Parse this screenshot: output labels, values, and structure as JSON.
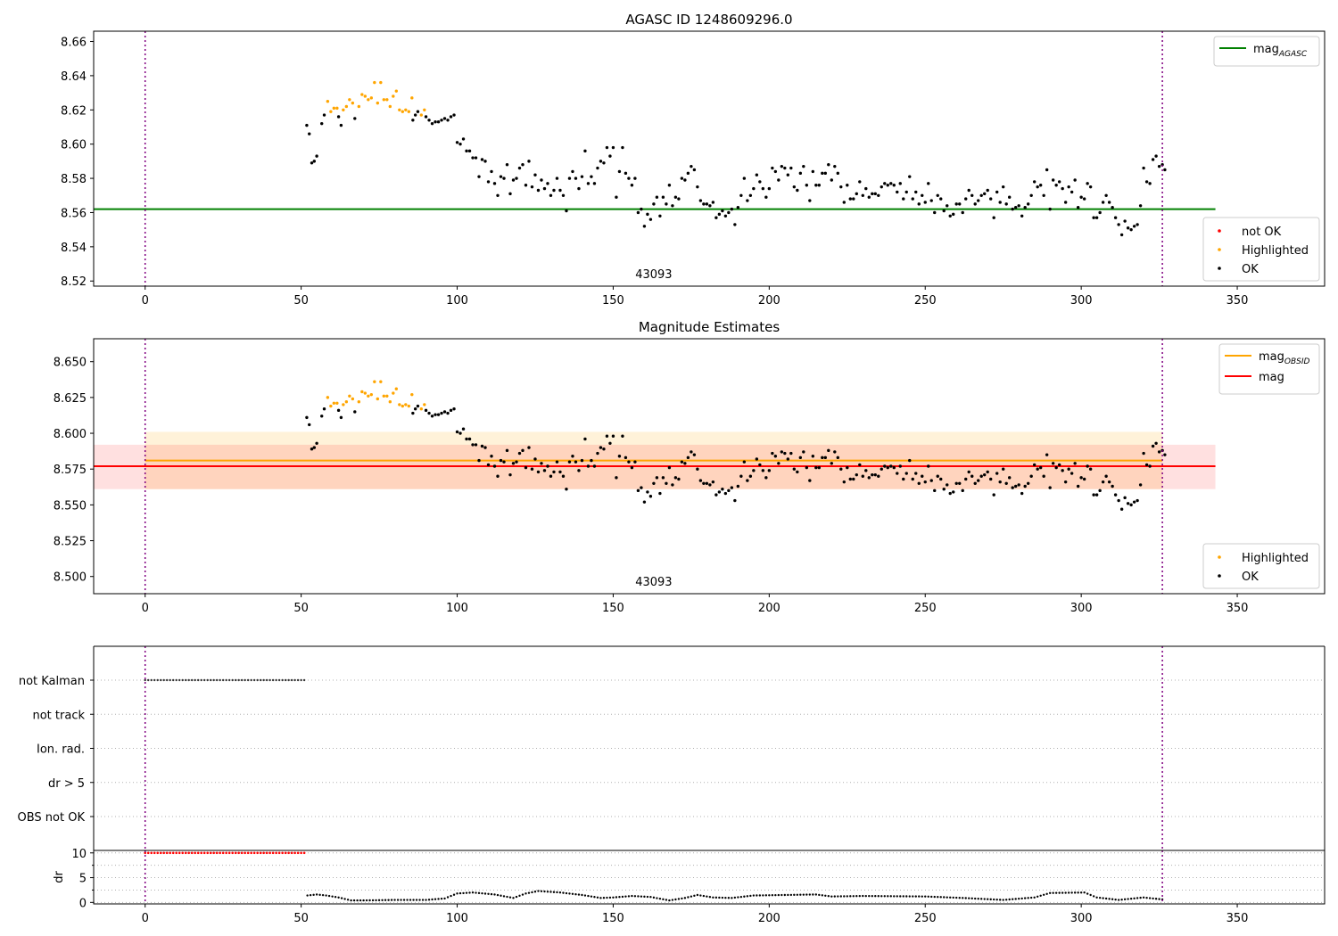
{
  "chart_data": [
    {
      "panel": "star magnitude",
      "type": "scatter",
      "title": "AGASC ID 1248609296.0",
      "xlim": [
        -16.5,
        378
      ],
      "ylim": [
        8.517,
        8.666
      ],
      "xticks": [
        0,
        50,
        100,
        150,
        200,
        250,
        300,
        350
      ],
      "yticks": [
        8.52,
        8.54,
        8.56,
        8.58,
        8.6,
        8.62,
        8.64,
        8.66
      ],
      "ytick_decimals": 2,
      "vlines": [
        0,
        326
      ],
      "hlines": [
        {
          "name": "mag_AGASC",
          "y": 8.562,
          "x": [
            -16.5,
            343
          ],
          "color": "#008000"
        }
      ],
      "bands": [],
      "annotation": {
        "text": "43093",
        "x": 163
      },
      "legend_lines": [
        {
          "label": "mag",
          "sub": "AGASC",
          "color": "#008000"
        }
      ],
      "legend_points": [
        {
          "label": "not OK",
          "color": "#ff0000"
        },
        {
          "label": "Highlighted",
          "color": "#ffa500"
        },
        {
          "label": "OK",
          "color": "#000000"
        }
      ],
      "point_series": [
        "highlighted",
        "ok"
      ],
      "grid": false
    },
    {
      "panel": "magnitude estimates",
      "type": "scatter",
      "title": "Magnitude Estimates",
      "xlim": [
        -16.5,
        378
      ],
      "ylim": [
        8.488,
        8.666
      ],
      "xticks": [
        0,
        50,
        100,
        150,
        200,
        250,
        300,
        350
      ],
      "yticks": [
        8.5,
        8.525,
        8.55,
        8.575,
        8.6,
        8.625,
        8.65
      ],
      "ytick_decimals": 3,
      "vlines": [
        0,
        326
      ],
      "hlines": [
        {
          "name": "mag_OBSID",
          "y": 8.581,
          "x": [
            0,
            326
          ],
          "color": "#ffa500"
        },
        {
          "name": "mag",
          "y": 8.577,
          "x": [
            -16.5,
            343
          ],
          "color": "#ff0000"
        }
      ],
      "bands": [
        {
          "y0": 8.561,
          "y1": 8.601,
          "x": [
            0,
            326
          ],
          "color": "#ffa500",
          "opacity": 0.15
        },
        {
          "y0": 8.561,
          "y1": 8.592,
          "x": [
            -16.5,
            343
          ],
          "color": "#ff0000",
          "opacity": 0.12
        }
      ],
      "annotation": {
        "text": "43093",
        "x": 163
      },
      "legend_lines": [
        {
          "label": "mag",
          "sub": "OBSID",
          "color": "#ffa500"
        },
        {
          "label": "mag",
          "sub": "",
          "color": "#ff0000"
        }
      ],
      "legend_points": [
        {
          "label": "Highlighted",
          "color": "#ffa500"
        },
        {
          "label": "OK",
          "color": "#000000"
        }
      ],
      "point_series": [
        "highlighted",
        "ok"
      ],
      "grid": false
    },
    {
      "panel": "flags",
      "type": "scatter",
      "categories": [
        "not Kalman",
        "not track",
        "Ion. rad.",
        "dr > 5",
        "OBS not OK"
      ],
      "flagged_ranges": [
        {
          "category": "not Kalman",
          "x": [
            0,
            51
          ]
        }
      ],
      "xlim": [
        -16.5,
        378
      ],
      "vlines": [
        0,
        326
      ],
      "grid": true
    },
    {
      "panel": "dr",
      "type": "scatter",
      "ylabel": "dr",
      "xlim": [
        -16.5,
        378
      ],
      "ylim": [
        -0.3,
        10.5
      ],
      "yticks": [
        0,
        5,
        10
      ],
      "xticks": [
        0,
        50,
        100,
        150,
        200,
        250,
        300,
        350
      ],
      "vlines": [
        0,
        326
      ],
      "capped_points": {
        "y": 10,
        "x_range": [
          0,
          51
        ],
        "color": "#ff0000"
      },
      "series": [
        {
          "x": 52,
          "y": 1.4
        },
        {
          "x": 55,
          "y": 1.6
        },
        {
          "x": 58,
          "y": 1.4
        },
        {
          "x": 62,
          "y": 1.0
        },
        {
          "x": 66,
          "y": 0.4
        },
        {
          "x": 70,
          "y": 0.4
        },
        {
          "x": 80,
          "y": 0.5
        },
        {
          "x": 90,
          "y": 0.5
        },
        {
          "x": 96,
          "y": 0.8
        },
        {
          "x": 100,
          "y": 1.8
        },
        {
          "x": 105,
          "y": 2.0
        },
        {
          "x": 112,
          "y": 1.6
        },
        {
          "x": 118,
          "y": 0.9
        },
        {
          "x": 122,
          "y": 1.8
        },
        {
          "x": 126,
          "y": 2.3
        },
        {
          "x": 133,
          "y": 2.0
        },
        {
          "x": 140,
          "y": 1.5
        },
        {
          "x": 146,
          "y": 0.9
        },
        {
          "x": 150,
          "y": 1.0
        },
        {
          "x": 156,
          "y": 1.3
        },
        {
          "x": 162,
          "y": 1.1
        },
        {
          "x": 168,
          "y": 0.4
        },
        {
          "x": 173,
          "y": 0.9
        },
        {
          "x": 177,
          "y": 1.5
        },
        {
          "x": 182,
          "y": 1.0
        },
        {
          "x": 188,
          "y": 0.9
        },
        {
          "x": 195,
          "y": 1.4
        },
        {
          "x": 205,
          "y": 1.5
        },
        {
          "x": 215,
          "y": 1.6
        },
        {
          "x": 220,
          "y": 1.2
        },
        {
          "x": 230,
          "y": 1.3
        },
        {
          "x": 250,
          "y": 1.2
        },
        {
          "x": 262,
          "y": 0.9
        },
        {
          "x": 275,
          "y": 0.5
        },
        {
          "x": 285,
          "y": 1.0
        },
        {
          "x": 290,
          "y": 1.9
        },
        {
          "x": 301,
          "y": 2.0
        },
        {
          "x": 305,
          "y": 1.0
        },
        {
          "x": 312,
          "y": 0.5
        },
        {
          "x": 320,
          "y": 1.0
        },
        {
          "x": 326,
          "y": 0.6
        }
      ]
    }
  ],
  "observation_points": {
    "highlighted": [
      [
        58.5,
        8.625
      ],
      [
        59.5,
        8.619
      ],
      [
        60.5,
        8.621
      ],
      [
        61.5,
        8.621
      ],
      [
        63.5,
        8.62
      ],
      [
        64.5,
        8.622
      ],
      [
        65.5,
        8.626
      ],
      [
        66.5,
        8.624
      ],
      [
        68.5,
        8.622
      ],
      [
        69.5,
        8.629
      ],
      [
        70.5,
        8.628
      ],
      [
        71.5,
        8.626
      ],
      [
        72.5,
        8.627
      ],
      [
        73.5,
        8.636
      ],
      [
        74.5,
        8.624
      ],
      [
        75.5,
        8.636
      ],
      [
        76.5,
        8.626
      ],
      [
        77.5,
        8.626
      ],
      [
        78.5,
        8.622
      ],
      [
        79.5,
        8.628
      ],
      [
        80.5,
        8.631
      ],
      [
        81.5,
        8.62
      ],
      [
        82.5,
        8.619
      ],
      [
        83.5,
        8.62
      ],
      [
        84.5,
        8.619
      ],
      [
        85.5,
        8.627
      ],
      [
        88.5,
        8.617
      ],
      [
        89.5,
        8.62
      ]
    ],
    "ok": [
      [
        51.8,
        8.611
      ],
      [
        52.6,
        8.606
      ],
      [
        53.4,
        8.589
      ],
      [
        54.2,
        8.59
      ],
      [
        55.0,
        8.593
      ],
      [
        56.6,
        8.612
      ],
      [
        57.4,
        8.617
      ],
      [
        62.0,
        8.616
      ],
      [
        62.8,
        8.611
      ],
      [
        67.2,
        8.615
      ],
      [
        85.8,
        8.614
      ],
      [
        86.6,
        8.617
      ],
      [
        87.4,
        8.619
      ],
      [
        90.0,
        8.616
      ],
      [
        91.0,
        8.614
      ],
      [
        92.0,
        8.612
      ],
      [
        93.0,
        8.613
      ],
      [
        94.0,
        8.613
      ],
      [
        95.0,
        8.614
      ],
      [
        96.0,
        8.615
      ],
      [
        97.0,
        8.614
      ],
      [
        98.0,
        8.616
      ],
      [
        99.0,
        8.617
      ],
      [
        100.0,
        8.601
      ],
      [
        101.0,
        8.6
      ],
      [
        102.0,
        8.603
      ],
      [
        103.0,
        8.596
      ],
      [
        104.0,
        8.596
      ],
      [
        105.0,
        8.592
      ],
      [
        106.0,
        8.592
      ],
      [
        107.0,
        8.581
      ],
      [
        108.0,
        8.591
      ],
      [
        109.0,
        8.59
      ],
      [
        110.0,
        8.578
      ],
      [
        111.0,
        8.584
      ],
      [
        112.0,
        8.577
      ],
      [
        113.0,
        8.57
      ],
      [
        114.0,
        8.581
      ],
      [
        115.0,
        8.58
      ],
      [
        116.0,
        8.588
      ],
      [
        117.0,
        8.571
      ],
      [
        118.0,
        8.579
      ],
      [
        119.0,
        8.58
      ],
      [
        120.0,
        8.586
      ],
      [
        121.0,
        8.588
      ],
      [
        122.0,
        8.576
      ],
      [
        123.0,
        8.59
      ],
      [
        124.0,
        8.575
      ],
      [
        125.0,
        8.582
      ],
      [
        126.0,
        8.573
      ],
      [
        127.0,
        8.579
      ],
      [
        128.0,
        8.574
      ],
      [
        129.0,
        8.577
      ],
      [
        130.0,
        8.57
      ],
      [
        131.0,
        8.573
      ],
      [
        132.0,
        8.58
      ],
      [
        133.0,
        8.573
      ],
      [
        134.0,
        8.57
      ],
      [
        135.0,
        8.561
      ],
      [
        136.0,
        8.58
      ],
      [
        137.0,
        8.584
      ],
      [
        138.0,
        8.58
      ],
      [
        139.0,
        8.574
      ],
      [
        140.0,
        8.581
      ],
      [
        141.0,
        8.596
      ],
      [
        142.0,
        8.577
      ],
      [
        143.0,
        8.581
      ],
      [
        144.0,
        8.577
      ],
      [
        145.0,
        8.586
      ],
      [
        146.0,
        8.59
      ],
      [
        147.0,
        8.589
      ],
      [
        148.0,
        8.598
      ],
      [
        149.0,
        8.593
      ],
      [
        150.0,
        8.598
      ],
      [
        151.0,
        8.569
      ],
      [
        152.0,
        8.584
      ],
      [
        153.0,
        8.598
      ],
      [
        154.0,
        8.583
      ],
      [
        155.0,
        8.58
      ],
      [
        156.0,
        8.576
      ],
      [
        157.0,
        8.58
      ],
      [
        158.0,
        8.56
      ],
      [
        159.0,
        8.562
      ],
      [
        160.0,
        8.552
      ],
      [
        161.0,
        8.559
      ],
      [
        162.0,
        8.556
      ],
      [
        163.0,
        8.565
      ],
      [
        164.0,
        8.569
      ],
      [
        165.0,
        8.558
      ],
      [
        166.0,
        8.569
      ],
      [
        167.0,
        8.565
      ],
      [
        168.0,
        8.576
      ],
      [
        169.0,
        8.564
      ],
      [
        170.0,
        8.569
      ],
      [
        171.0,
        8.568
      ],
      [
        172.0,
        8.58
      ],
      [
        173.0,
        8.579
      ],
      [
        174.0,
        8.583
      ],
      [
        175.0,
        8.587
      ],
      [
        176.0,
        8.585
      ],
      [
        177.0,
        8.575
      ],
      [
        178.0,
        8.567
      ],
      [
        179.0,
        8.565
      ],
      [
        180.0,
        8.565
      ],
      [
        181.0,
        8.564
      ],
      [
        182.0,
        8.566
      ],
      [
        183.0,
        8.557
      ],
      [
        184.0,
        8.559
      ],
      [
        185.0,
        8.561
      ],
      [
        186.0,
        8.558
      ],
      [
        187.0,
        8.56
      ],
      [
        188.0,
        8.562
      ],
      [
        189.0,
        8.553
      ],
      [
        190.0,
        8.563
      ],
      [
        191.0,
        8.57
      ],
      [
        192.0,
        8.58
      ],
      [
        193.0,
        8.567
      ],
      [
        194.0,
        8.57
      ],
      [
        195.0,
        8.574
      ],
      [
        196.0,
        8.582
      ],
      [
        197.0,
        8.578
      ],
      [
        198.0,
        8.574
      ],
      [
        199.0,
        8.569
      ],
      [
        200.0,
        8.574
      ],
      [
        201.0,
        8.586
      ],
      [
        202.0,
        8.584
      ],
      [
        203.0,
        8.579
      ],
      [
        204.0,
        8.587
      ],
      [
        205.0,
        8.586
      ],
      [
        206.0,
        8.582
      ],
      [
        207.0,
        8.586
      ],
      [
        208.0,
        8.575
      ],
      [
        209.0,
        8.573
      ],
      [
        210.0,
        8.583
      ],
      [
        211.0,
        8.587
      ],
      [
        212.0,
        8.576
      ],
      [
        213.0,
        8.567
      ],
      [
        214.0,
        8.584
      ],
      [
        215.0,
        8.576
      ],
      [
        216.0,
        8.576
      ],
      [
        217.0,
        8.583
      ],
      [
        218.0,
        8.583
      ],
      [
        219.0,
        8.588
      ],
      [
        220.0,
        8.579
      ],
      [
        221.0,
        8.587
      ],
      [
        222.0,
        8.583
      ],
      [
        223.0,
        8.575
      ],
      [
        224.0,
        8.566
      ],
      [
        225.0,
        8.576
      ],
      [
        226.0,
        8.568
      ],
      [
        227.0,
        8.568
      ],
      [
        228.0,
        8.571
      ],
      [
        229.0,
        8.578
      ],
      [
        230.0,
        8.57
      ],
      [
        231.0,
        8.574
      ],
      [
        232.0,
        8.569
      ],
      [
        233.0,
        8.571
      ],
      [
        234.0,
        8.571
      ],
      [
        235.0,
        8.57
      ],
      [
        236.0,
        8.575
      ],
      [
        237.0,
        8.577
      ],
      [
        238.0,
        8.576
      ],
      [
        239.0,
        8.577
      ],
      [
        240.0,
        8.576
      ],
      [
        241.0,
        8.572
      ],
      [
        242.0,
        8.577
      ],
      [
        243.0,
        8.568
      ],
      [
        244.0,
        8.572
      ],
      [
        245.0,
        8.581
      ],
      [
        246.0,
        8.568
      ],
      [
        247.0,
        8.572
      ],
      [
        248.0,
        8.565
      ],
      [
        249.0,
        8.57
      ],
      [
        250.0,
        8.566
      ],
      [
        251.0,
        8.577
      ],
      [
        252.0,
        8.567
      ],
      [
        253.0,
        8.56
      ],
      [
        254.0,
        8.57
      ],
      [
        255.0,
        8.568
      ],
      [
        256.0,
        8.561
      ],
      [
        257.0,
        8.564
      ],
      [
        258.0,
        8.558
      ],
      [
        259.0,
        8.559
      ],
      [
        260.0,
        8.565
      ],
      [
        261.0,
        8.565
      ],
      [
        262.0,
        8.56
      ],
      [
        263.0,
        8.568
      ],
      [
        264.0,
        8.573
      ],
      [
        265.0,
        8.57
      ],
      [
        266.0,
        8.565
      ],
      [
        267.0,
        8.567
      ],
      [
        268.0,
        8.57
      ],
      [
        269.0,
        8.571
      ],
      [
        270.0,
        8.573
      ],
      [
        271.0,
        8.568
      ],
      [
        272.0,
        8.557
      ],
      [
        273.0,
        8.572
      ],
      [
        274.0,
        8.566
      ],
      [
        275.0,
        8.575
      ],
      [
        276.0,
        8.565
      ],
      [
        277.0,
        8.569
      ],
      [
        278.0,
        8.562
      ],
      [
        279.0,
        8.563
      ],
      [
        280.0,
        8.564
      ],
      [
        281.0,
        8.558
      ],
      [
        282.0,
        8.563
      ],
      [
        283.0,
        8.565
      ],
      [
        284.0,
        8.57
      ],
      [
        285.0,
        8.578
      ],
      [
        286.0,
        8.575
      ],
      [
        287.0,
        8.576
      ],
      [
        288.0,
        8.57
      ],
      [
        289.0,
        8.585
      ],
      [
        290.0,
        8.562
      ],
      [
        291.0,
        8.579
      ],
      [
        292.0,
        8.576
      ],
      [
        293.0,
        8.578
      ],
      [
        294.0,
        8.574
      ],
      [
        295.0,
        8.566
      ],
      [
        296.0,
        8.575
      ],
      [
        297.0,
        8.572
      ],
      [
        298.0,
        8.579
      ],
      [
        299.0,
        8.563
      ],
      [
        300.0,
        8.569
      ],
      [
        301.0,
        8.568
      ],
      [
        302.0,
        8.577
      ],
      [
        303.0,
        8.575
      ],
      [
        304.0,
        8.557
      ],
      [
        305.0,
        8.557
      ],
      [
        306.0,
        8.56
      ],
      [
        307.0,
        8.566
      ],
      [
        308.0,
        8.57
      ],
      [
        309.0,
        8.566
      ],
      [
        310.0,
        8.563
      ],
      [
        311.0,
        8.557
      ],
      [
        312.0,
        8.553
      ],
      [
        313.0,
        8.547
      ],
      [
        314.0,
        8.555
      ],
      [
        315.0,
        8.551
      ],
      [
        316.0,
        8.55
      ],
      [
        317.0,
        8.552
      ],
      [
        318.0,
        8.553
      ],
      [
        319.0,
        8.564
      ],
      [
        320.0,
        8.586
      ],
      [
        321.0,
        8.578
      ],
      [
        322.0,
        8.577
      ],
      [
        323.0,
        8.591
      ],
      [
        324.0,
        8.593
      ],
      [
        325.0,
        8.587
      ],
      [
        326.0,
        8.588
      ],
      [
        326.8,
        8.585
      ]
    ]
  }
}
